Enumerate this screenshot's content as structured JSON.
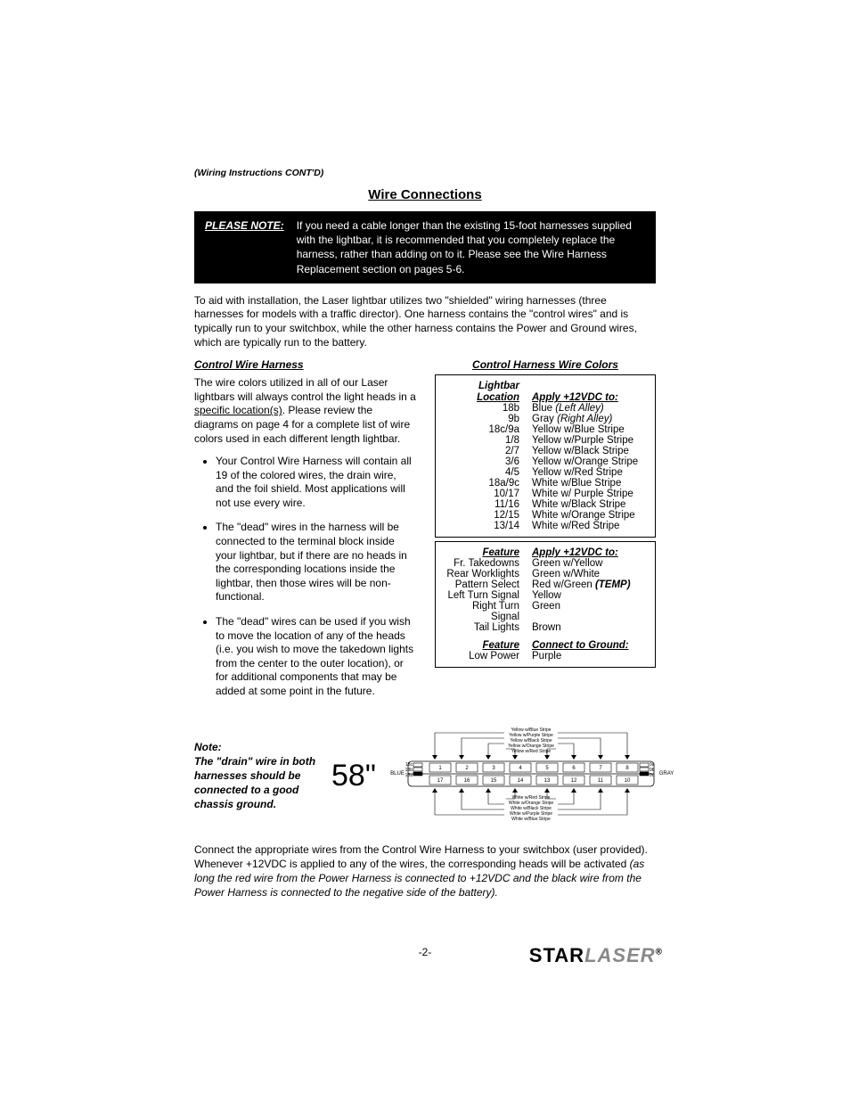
{
  "cont_label": "(Wiring Instructions CONT'D)",
  "heading": "Wire Connections",
  "notebox": {
    "label": "PLEASE NOTE:",
    "text": "If you need a cable longer than the existing 15-foot harnesses supplied with the lightbar, it is recommended that you completely replace the harness, rather than adding on to it.  Please see the Wire Harness Replacement section on pages 5-6."
  },
  "intro": "To aid with installation, the Laser lightbar utilizes two \"shielded\" wiring harnesses (three harnesses for models with a traffic director).  One harness contains the \"control wires\" and is typically run to your switchbox, while the other harness contains the Power and Ground wires, which are typically run to the battery.",
  "left": {
    "sub": "Control Wire Harness",
    "p1a": "The wire colors utilized in all of our Laser lightbars will always control the light heads in a ",
    "p1_spec": "specific location(s)",
    "p1b": ".  Please review the diagrams on page 4 for a complete list of wire colors used in each different length lightbar.",
    "bullets": [
      "Your Control Wire Harness will contain all 19 of the colored wires, the drain wire, and the foil shield.  Most applications will not use every wire.",
      "The \"dead\" wires in the harness will be connected to the terminal block inside your lightbar, but if there are no heads in the corresponding locations inside the lightbar, then those wires will be non-functional.",
      "The \"dead\" wires can be used if you wish to move the location of any of the heads (i.e. you wish to move the takedown lights from the center to the outer location), or for additional components that may be added at some point in the future."
    ]
  },
  "right": {
    "sub": "Control Harness Wire Colors",
    "loc_hdr1": "Lightbar",
    "loc_hdr2": "Location",
    "apply_hdr": "Apply +12VDC to:",
    "rows": [
      {
        "loc": "18b",
        "wire": "Blue",
        "suffix": " (Left Alley)",
        "italic": true
      },
      {
        "loc": "9b",
        "wire": "Gray",
        "suffix": " (Right Alley)",
        "italic": true
      },
      {
        "loc": "18c/9a",
        "wire": "Yellow w/Blue Stripe"
      },
      {
        "loc": "1/8",
        "wire": "Yellow w/Purple Stripe"
      },
      {
        "loc": "2/7",
        "wire": "Yellow w/Black Stripe"
      },
      {
        "loc": "3/6",
        "wire": "Yellow w/Orange Stripe"
      },
      {
        "loc": "4/5",
        "wire": "Yellow w/Red Stripe"
      },
      {
        "loc": "18a/9c",
        "wire": "White w/Blue Stripe"
      },
      {
        "loc": "10/17",
        "wire": "White w/ Purple Stripe"
      },
      {
        "loc": "11/16",
        "wire": "White w/Black Stripe"
      },
      {
        "loc": "12/15",
        "wire": "White w/Orange Stripe"
      },
      {
        "loc": "13/14",
        "wire": "White w/Red Stripe"
      }
    ],
    "feat_hdr": "Feature",
    "feat_rows": [
      {
        "feat": "Fr. Takedowns",
        "wire": "Green w/Yellow"
      },
      {
        "feat": "Rear Worklights",
        "wire": "Green w/White"
      },
      {
        "feat": "Pattern Select",
        "wire": "Red w/Green ",
        "temp": "(TEMP)"
      },
      {
        "feat": "Left Turn Signal",
        "wire": "Yellow"
      },
      {
        "feat": "Right Turn Signal",
        "wire": "Green"
      },
      {
        "feat": "Tail Lights",
        "wire": "Brown"
      }
    ],
    "ground_hdr": "Connect to Ground:",
    "ground_rows": [
      {
        "feat": "Low Power",
        "wire": "Purple"
      }
    ]
  },
  "diagram": {
    "note": "Note:\nThe \"drain\" wire in both harnesses should be connected to a good chassis ground.",
    "big": "58\"",
    "blue": "BLUE",
    "gray": "GRAY",
    "top_labels": [
      "Yellow w/Blue Stripe",
      "Yellow w/Purple Stripe",
      "Yellow w/Black Stripe",
      "Yellow w/Orange Stripe",
      "Yellow w/Red Stripe"
    ],
    "bot_labels": [
      "White w/Red Stripe",
      "White w/Orange Stripe",
      "White w/Black Stripe",
      "White w/Purple Stripe",
      "White w/Blue Stripe"
    ],
    "top_nums": [
      "1",
      "2",
      "3",
      "4",
      "5",
      "6",
      "7",
      "8"
    ],
    "bot_nums": [
      "17",
      "16",
      "15",
      "14",
      "13",
      "12",
      "11",
      "10"
    ],
    "side_top": [
      "18c",
      "18b",
      "18a"
    ],
    "side_r": [
      "9a",
      "9b",
      "9c"
    ]
  },
  "bottom": {
    "p1": "Connect the appropriate wires from the Control Wire Harness to your switchbox (user provided). Whenever +12VDC is applied to any of the wires, the corresponding heads will be activated ",
    "p1_it": "(as long the red wire from the Power Harness is connected to +12VDC and the black wire from the Power Harness is connected to the negative side of the battery)."
  },
  "footer_page": "-2-",
  "brand1": "STAR",
  "brand2": "LASER"
}
